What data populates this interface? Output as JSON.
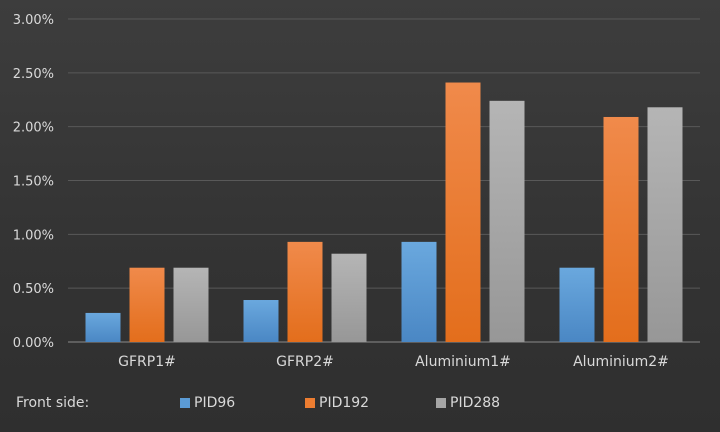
{
  "chart_data": {
    "type": "bar",
    "categories": [
      "GFRP1#",
      "GFRP2#",
      "Aluminium1#",
      "Aluminium2#"
    ],
    "series": [
      {
        "name": "PID96",
        "values": [
          0.0027,
          0.0039,
          0.0093,
          0.0069
        ],
        "color": "#5b9bd5"
      },
      {
        "name": "PID192",
        "values": [
          0.0069,
          0.0093,
          0.0241,
          0.0209
        ],
        "color": "#ed7d31"
      },
      {
        "name": "PID288",
        "values": [
          0.0069,
          0.0082,
          0.0224,
          0.0218
        ],
        "color": "#a5a5a5"
      }
    ],
    "ylim": [
      0,
      0.03
    ],
    "yticks": [
      "0.00%",
      "0.50%",
      "1.00%",
      "1.50%",
      "2.00%",
      "2.50%",
      "3.00%"
    ],
    "grid": true,
    "legend_position": "bottom",
    "legend_prefix": "Front side:"
  }
}
